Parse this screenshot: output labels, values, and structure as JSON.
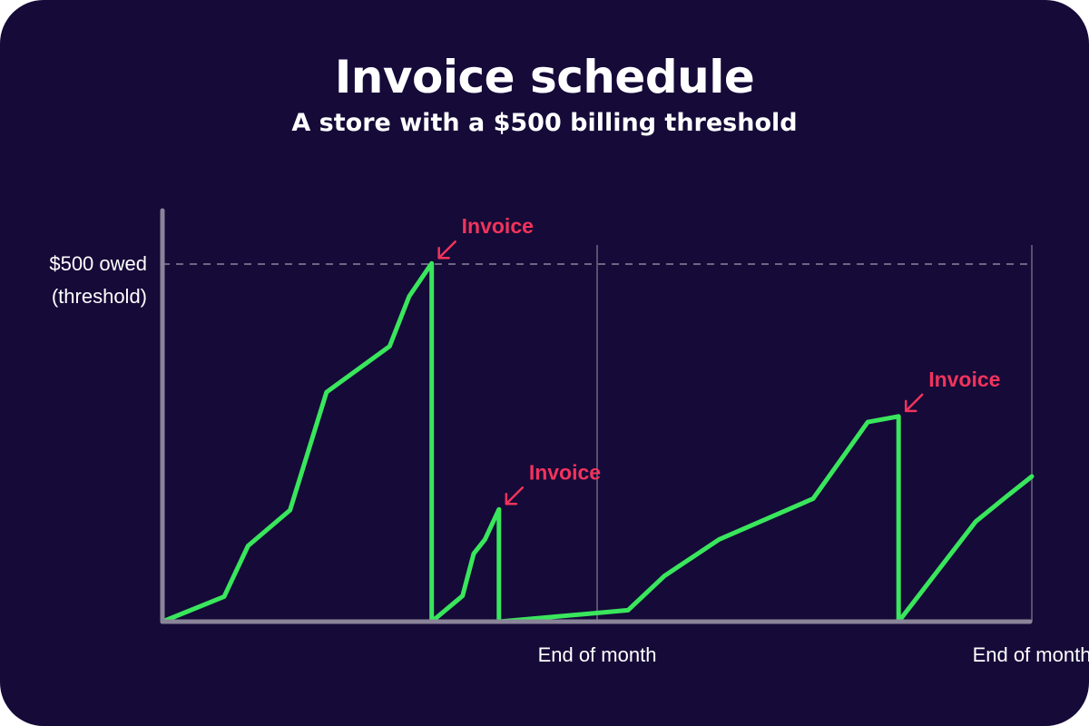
{
  "title": "Invoice schedule",
  "subtitle": "A store with a $500 billing threshold",
  "colors": {
    "background": "#150a38",
    "line": "#39e65c",
    "annotation": "#f2335c",
    "axis": "#8a8499",
    "threshold": "#8a8499",
    "month_marker": "#6e6880",
    "text": "#ffffff"
  },
  "chart_data": {
    "type": "line",
    "title": "Invoice schedule",
    "subtitle": "A store with a $500 billing threshold",
    "ylim": [
      0,
      500
    ],
    "threshold": {
      "value": 500,
      "label_line1": "$500 owed",
      "label_line2": "(threshold)"
    },
    "month_markers": [
      {
        "x": 31,
        "label": "End of month"
      },
      {
        "x": 62,
        "label": "End of month"
      }
    ],
    "xlim": [
      0,
      62
    ],
    "series": [
      {
        "values_x": [
          0,
          4.4,
          6.1,
          9.1,
          11.7,
          16.2,
          17.6,
          19.2,
          19.2,
          21.4,
          22.2,
          23.0,
          24.0,
          24.0,
          33.2,
          35.8,
          39.7,
          46.4,
          50.3,
          52.5,
          52.5,
          58.0,
          60.2,
          62.0
        ],
        "values_y": [
          0,
          35,
          106,
          156,
          321,
          385,
          455,
          501,
          0,
          36,
          95,
          115,
          157,
          0,
          16,
          64,
          115,
          172,
          279,
          287,
          0,
          140,
          175,
          203
        ]
      }
    ],
    "annotations": [
      {
        "label": "Invoice",
        "x": 19.2,
        "y": 501
      },
      {
        "label": "Invoice",
        "x": 24.0,
        "y": 157
      },
      {
        "label": "Invoice",
        "x": 52.5,
        "y": 287
      }
    ]
  }
}
